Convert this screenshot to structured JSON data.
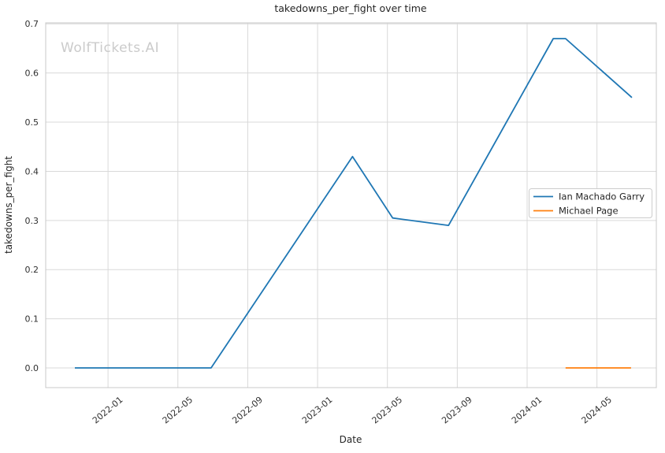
{
  "title": "takedowns_per_fight over time",
  "watermark": "WolfTickets.AI",
  "axes": {
    "xlabel": "Date",
    "ylabel": "takedowns_per_fight"
  },
  "colors": {
    "series_blue": "#1f77b4",
    "series_orange": "#ff7f0e",
    "grid": "#d9d9d9",
    "spine": "#c8c8c8",
    "watermark": "#cbcbcb",
    "text": "#262626"
  },
  "chart_data": {
    "type": "line",
    "title": "takedowns_per_fight over time",
    "xlabel": "Date",
    "ylabel": "takedowns_per_fight",
    "grid": true,
    "legend_loc": "center right",
    "x_unit": "months_since_2021_01",
    "xlim": [
      8.43,
      43.4
    ],
    "ylim": [
      -0.04,
      0.702
    ],
    "x_ticks": [
      {
        "t": 12,
        "label": "2022-01"
      },
      {
        "t": 16,
        "label": "2022-05"
      },
      {
        "t": 20,
        "label": "2022-09"
      },
      {
        "t": 24,
        "label": "2023-01"
      },
      {
        "t": 28,
        "label": "2023-05"
      },
      {
        "t": 32,
        "label": "2023-09"
      },
      {
        "t": 36,
        "label": "2024-01"
      },
      {
        "t": 40,
        "label": "2024-05"
      }
    ],
    "y_ticks": [
      0.0,
      0.1,
      0.2,
      0.3,
      0.4,
      0.5,
      0.6,
      0.7
    ],
    "series": [
      {
        "name": "Ian Machado Garry",
        "color": "#1f77b4",
        "points": [
          {
            "date": "2021-11",
            "t": 10.1,
            "value": 0.0
          },
          {
            "date": "2022-07",
            "t": 17.9,
            "value": 0.0
          },
          {
            "date": "2023-03",
            "t": 26.0,
            "value": 0.43
          },
          {
            "date": "2023-05",
            "t": 28.3,
            "value": 0.305
          },
          {
            "date": "2023-08",
            "t": 31.5,
            "value": 0.29
          },
          {
            "date": "2024-02",
            "t": 37.5,
            "value": 0.67
          },
          {
            "date": "2024-03",
            "t": 38.2,
            "value": 0.67
          },
          {
            "date": "2024-07",
            "t": 42.0,
            "value": 0.55
          }
        ]
      },
      {
        "name": "Michael Page",
        "color": "#ff7f0e",
        "points": [
          {
            "date": "2024-03",
            "t": 38.2,
            "value": 0.0
          },
          {
            "date": "2024-07",
            "t": 41.95,
            "value": 0.0
          }
        ]
      }
    ]
  }
}
